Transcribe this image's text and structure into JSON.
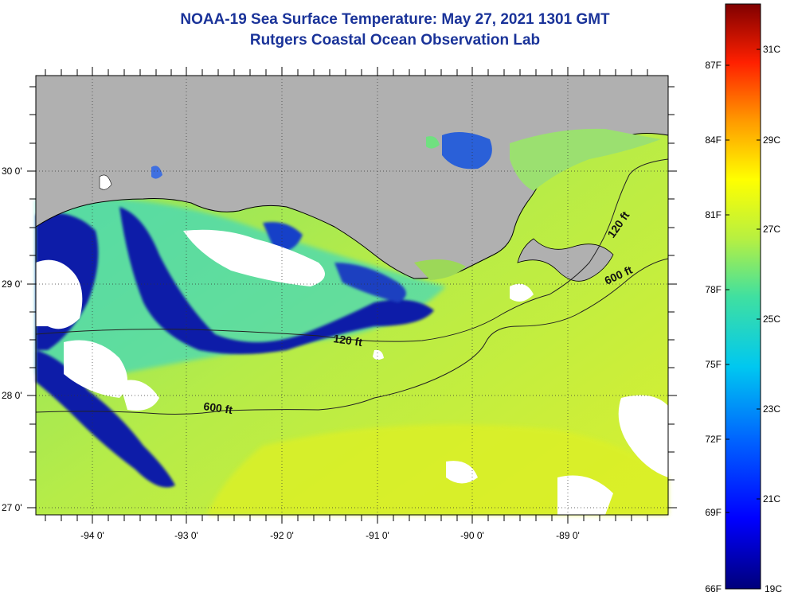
{
  "title": {
    "line1": "NOAA-19 Sea Surface Temperature:  May 27, 2021 1301 GMT",
    "line2": "Rutgers Coastal Ocean Observation Lab"
  },
  "axes": {
    "longitudes": [
      "-94 0'",
      "-93 0'",
      "-92 0'",
      "-91 0'",
      "-90 0'",
      "-89 0'"
    ],
    "latitudes": [
      "27 0'",
      "28 0'",
      "29 0'",
      "30 0'"
    ]
  },
  "contours": {
    "c120_west": "120 ft",
    "c120_east": "120 ft",
    "c600_west": "600 ft",
    "c600_east": "600 ft"
  },
  "colorbar": {
    "fahrenheit": [
      "87F",
      "84F",
      "81F",
      "78F",
      "75F",
      "72F",
      "69F",
      "66F"
    ],
    "celsius": [
      "31C",
      "29C",
      "27C",
      "25C",
      "23C",
      "21C",
      "19C"
    ]
  },
  "colors": {
    "land": "#b0b0b0",
    "cloud": "#ffffff",
    "title": "#1a3399",
    "cold": "#0a1a9a",
    "warm": "#c8ee3a"
  }
}
